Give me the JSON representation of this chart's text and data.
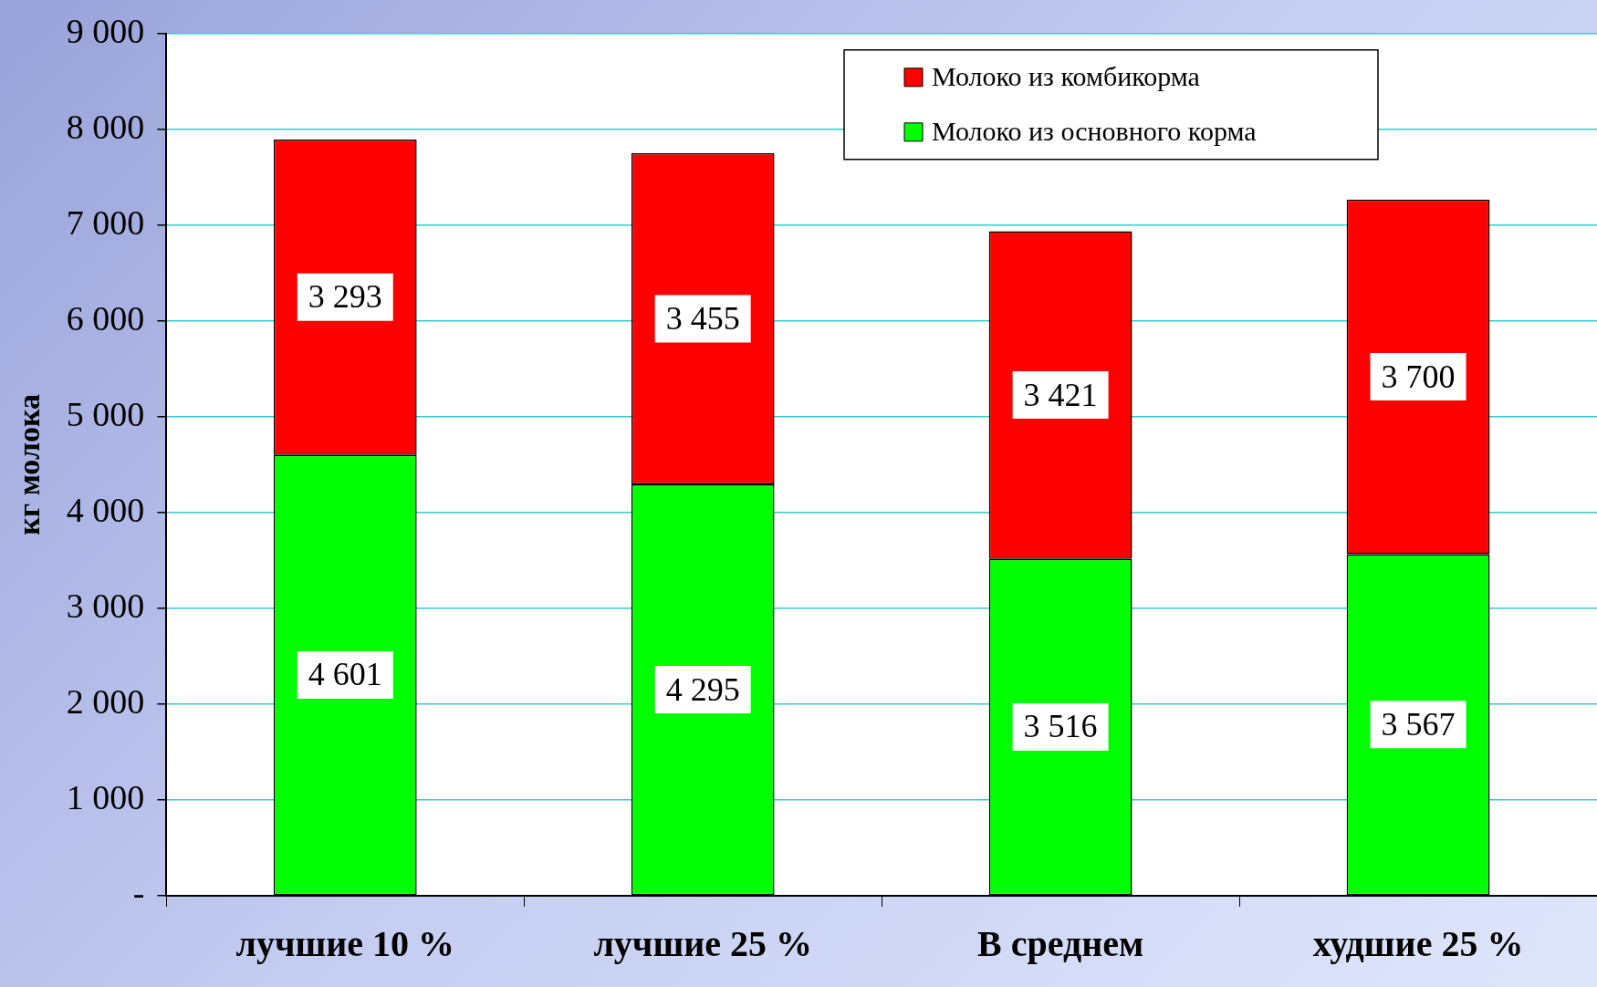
{
  "chart_data": {
    "type": "bar",
    "stacked": true,
    "ylabel": "кг молока",
    "categories": [
      "лучшие 10 %",
      "лучшие 25 %",
      "В среднем",
      "худшие 25 %"
    ],
    "series": [
      {
        "name": "Молоко из основного корма",
        "color": "#00ff00",
        "values": [
          4601,
          4295,
          3516,
          3567
        ],
        "value_labels": [
          "4 601",
          "4 295",
          "3 516",
          "3 567"
        ]
      },
      {
        "name": "Молоко из комбикорма",
        "color": "#ff0000",
        "values": [
          3293,
          3455,
          3421,
          3700
        ],
        "value_labels": [
          "3 293",
          "3 455",
          "3 421",
          "3 700"
        ]
      }
    ],
    "ylim": [
      0,
      9000
    ],
    "yticks": [
      {
        "value": 0,
        "label": "-"
      },
      {
        "value": 1000,
        "label": "1 000"
      },
      {
        "value": 2000,
        "label": "2 000"
      },
      {
        "value": 3000,
        "label": "3 000"
      },
      {
        "value": 4000,
        "label": "4 000"
      },
      {
        "value": 5000,
        "label": "5 000"
      },
      {
        "value": 6000,
        "label": "6 000"
      },
      {
        "value": 7000,
        "label": "7 000"
      },
      {
        "value": 8000,
        "label": "8 000"
      },
      {
        "value": 9000,
        "label": "9 000"
      }
    ],
    "grid": "y",
    "legend": "top right"
  }
}
